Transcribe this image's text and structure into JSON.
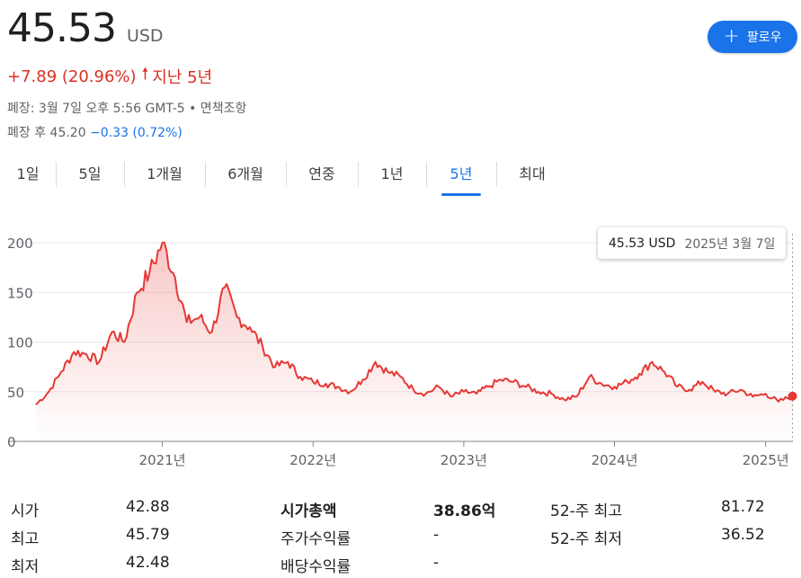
{
  "quote": {
    "price": "45.53",
    "currency": "USD",
    "change": "+7.89 (20.96%)",
    "period": "지난 5년",
    "closed_info": "폐장: 3월 7일 오후 5:56 GMT-5 • 면책조항",
    "after_hours_label": "폐장 후 45.20",
    "after_hours_change": "−0.33 (0.72%)"
  },
  "follow_button": {
    "label": "팔로우",
    "icon": "plus-icon"
  },
  "tabs": [
    "1일",
    "5일",
    "1개월",
    "6개월",
    "연중",
    "1년",
    "5년",
    "최대"
  ],
  "active_tab": "5년",
  "tooltip": {
    "price": "45.53 USD",
    "date": "2025년 3월 7일"
  },
  "colors": {
    "line": "#e53935",
    "accent": "#1a73e8",
    "negative": "#d93025"
  },
  "chart_data": {
    "type": "area",
    "y_ticks": [
      "0",
      "50",
      "100",
      "150",
      "200"
    ],
    "x_ticks": [
      "2021년",
      "2022년",
      "2023년",
      "2024년",
      "2025년"
    ],
    "ylim": [
      0,
      200
    ],
    "grid": true,
    "series": [
      {
        "x": [
          "2020-03",
          "2020-04",
          "2020-05",
          "2020-06",
          "2020-07",
          "2020-08",
          "2020-09",
          "2020-10",
          "2020-11",
          "2020-12",
          "2021-01",
          "2021-02",
          "2021-03",
          "2021-04",
          "2021-05",
          "2021-06",
          "2021-07",
          "2021-08",
          "2021-09",
          "2021-10",
          "2021-11",
          "2021-12",
          "2022-01",
          "2022-02",
          "2022-03",
          "2022-04",
          "2022-05",
          "2022-06",
          "2022-07",
          "2022-08",
          "2022-09",
          "2022-10",
          "2022-11",
          "2022-12",
          "2023-01",
          "2023-02",
          "2023-03",
          "2023-04",
          "2023-05",
          "2023-06",
          "2023-07",
          "2023-08",
          "2023-09",
          "2023-10",
          "2023-11",
          "2023-12",
          "2024-01",
          "2024-02",
          "2024-03",
          "2024-04",
          "2024-05",
          "2024-06",
          "2024-07",
          "2024-08",
          "2024-09",
          "2024-10",
          "2024-11",
          "2024-12",
          "2025-01",
          "2025-02",
          "2025-03"
        ],
        "values": [
          37,
          50,
          70,
          90,
          88,
          80,
          110,
          100,
          150,
          170,
          200,
          165,
          120,
          125,
          110,
          155,
          125,
          115,
          95,
          75,
          80,
          65,
          60,
          58,
          55,
          50,
          62,
          80,
          70,
          65,
          52,
          48,
          55,
          45,
          50,
          48,
          55,
          62,
          60,
          55,
          50,
          48,
          42,
          45,
          65,
          58,
          55,
          60,
          68,
          80,
          70,
          55,
          52,
          60,
          50,
          48,
          52,
          45,
          48,
          40,
          45.53
        ]
      }
    ]
  },
  "stats": [
    [
      {
        "label": "시가",
        "value": "42.88"
      },
      {
        "label": "시가총액",
        "value": "38.86억"
      },
      {
        "label": "52-주 최고",
        "value": "81.72"
      }
    ],
    [
      {
        "label": "최고",
        "value": "45.79"
      },
      {
        "label": "주가수익률",
        "value": "-"
      },
      {
        "label": "52-주 최저",
        "value": "36.52"
      }
    ],
    [
      {
        "label": "최저",
        "value": "42.48"
      },
      {
        "label": "배당수익률",
        "value": "-"
      }
    ]
  ]
}
